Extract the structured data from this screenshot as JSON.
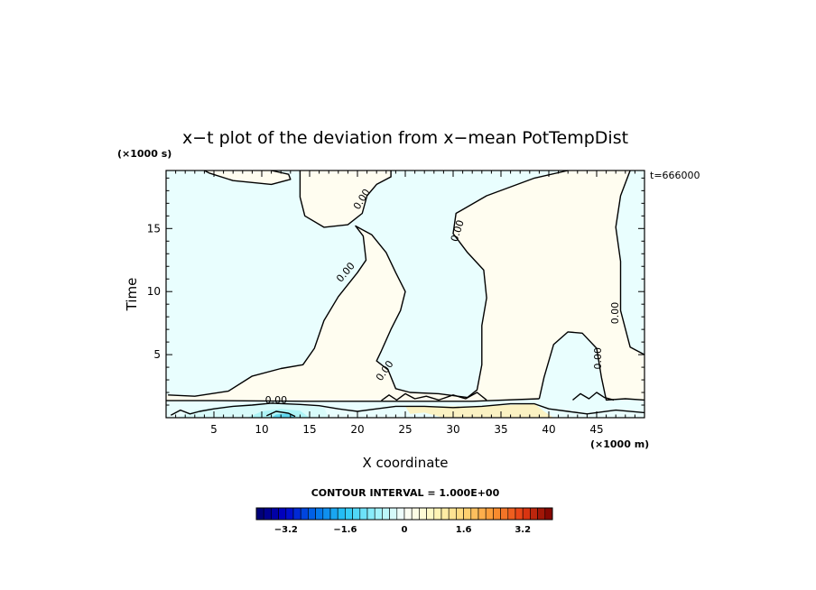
{
  "chart_data": {
    "type": "heatmap",
    "title": "x−t plot of the deviation from x−mean PotTempDist",
    "xlabel": "X coordinate",
    "ylabel": "Time",
    "x_unit_label": "(×1000 m)",
    "y_unit_label": "(×1000 s)",
    "time_annotation": "t=666000",
    "xlim": [
      0,
      50
    ],
    "ylim": [
      0,
      19.6
    ],
    "x_ticks": [
      5,
      10,
      15,
      20,
      25,
      30,
      35,
      40,
      45
    ],
    "x_tick_labels": [
      "5",
      "10",
      "15",
      "20",
      "25",
      "30",
      "35",
      "40",
      "45"
    ],
    "y_ticks": [
      5,
      10,
      15
    ],
    "y_tick_labels": [
      "5",
      "10",
      "15"
    ],
    "contour_label": "0.00",
    "contour_interval_text": "CONTOUR INTERVAL = 1.000E+00",
    "colorbar": {
      "range": [
        -4,
        4
      ],
      "step": 0.2,
      "tick_values": [
        -3.2,
        -1.6,
        0,
        1.6,
        3.2
      ],
      "tick_labels": [
        "−3.2",
        "−1.6",
        "0",
        "1.6",
        "3.2"
      ]
    },
    "regions": [
      {
        "sign": "positive",
        "fill": "#fffdf0",
        "points": [
          [
            4,
            19.6
          ],
          [
            11,
            19.6
          ],
          [
            12.8,
            19.3
          ],
          [
            13,
            18.9
          ],
          [
            11,
            18.5
          ],
          [
            7,
            18.8
          ],
          [
            4.5,
            19.4
          ]
        ]
      },
      {
        "sign": "positive",
        "fill": "#fffdf0",
        "points": [
          [
            14,
            17.5
          ],
          [
            14.5,
            16
          ],
          [
            16.5,
            15.1
          ],
          [
            19,
            15.3
          ],
          [
            20.5,
            16.2
          ],
          [
            21,
            17.6
          ],
          [
            22,
            18.5
          ],
          [
            23.5,
            19.1
          ],
          [
            23.5,
            19.6
          ],
          [
            14,
            19.6
          ]
        ]
      },
      {
        "sign": "positive",
        "fill": "#fffdf0",
        "points": [
          [
            0.2,
            1.8
          ],
          [
            3,
            1.7
          ],
          [
            6.5,
            2.1
          ],
          [
            9,
            3.3
          ],
          [
            12,
            3.9
          ],
          [
            14.3,
            4.2
          ],
          [
            15.5,
            5.5
          ],
          [
            16.5,
            7.7
          ],
          [
            18,
            9.6
          ],
          [
            20,
            11.5
          ],
          [
            20.9,
            12.5
          ],
          [
            20.6,
            14.4
          ],
          [
            19.8,
            15.2
          ],
          [
            21.5,
            14.5
          ],
          [
            23,
            13.1
          ],
          [
            24,
            11.5
          ],
          [
            25,
            10
          ],
          [
            24.5,
            8.5
          ],
          [
            23.5,
            7
          ],
          [
            22.5,
            5.3
          ],
          [
            22,
            4.5
          ],
          [
            23.2,
            3.8
          ],
          [
            24,
            2.3
          ],
          [
            25.5,
            2
          ],
          [
            28.5,
            1.9
          ],
          [
            31.5,
            1.6
          ],
          [
            32.5,
            2.2
          ],
          [
            33,
            4.2
          ],
          [
            33,
            7.3
          ],
          [
            33.5,
            9.5
          ],
          [
            33.2,
            11.7
          ],
          [
            31.5,
            13.1
          ],
          [
            30,
            14.6
          ],
          [
            30.3,
            16.2
          ],
          [
            33.5,
            17.6
          ],
          [
            38.5,
            19
          ],
          [
            42,
            19.6
          ],
          [
            48.5,
            19.6
          ],
          [
            47.5,
            17.6
          ],
          [
            47,
            15.1
          ],
          [
            47.5,
            12.4
          ],
          [
            47.5,
            8.5
          ],
          [
            48.5,
            5.6
          ],
          [
            50,
            5
          ],
          [
            50,
            1.4
          ],
          [
            48,
            1.5
          ],
          [
            46,
            1.4
          ],
          [
            45.5,
            3.2
          ],
          [
            45,
            5.5
          ],
          [
            43.5,
            6.7
          ],
          [
            42,
            6.8
          ],
          [
            40.5,
            5.8
          ],
          [
            39.5,
            3.2
          ],
          [
            39,
            1.5
          ],
          [
            32,
            1.3
          ],
          [
            15,
            1.3
          ],
          [
            5,
            1.35
          ],
          [
            0,
            1.35
          ],
          [
            0,
            1.8
          ]
        ]
      },
      {
        "sign": "positive",
        "fill": "#fbf2c3",
        "points": [
          [
            25,
            0.9
          ],
          [
            33,
            0.9
          ],
          [
            38.5,
            1.1
          ],
          [
            39.5,
            0.5
          ],
          [
            40.5,
            0
          ],
          [
            29,
            0
          ],
          [
            27,
            0.4
          ],
          [
            25.5,
            0.3
          ]
        ]
      },
      {
        "sign": "negative",
        "fill": "#d8fbfa",
        "points": [
          [
            1.2,
            0
          ],
          [
            3,
            0.6
          ],
          [
            6,
            0.9
          ],
          [
            10,
            1.2
          ],
          [
            14,
            1.0
          ],
          [
            16.5,
            0.8
          ],
          [
            17,
            0
          ],
          [
            1.2,
            0
          ]
        ]
      },
      {
        "sign": "negative",
        "fill": "#aef4f6",
        "points": [
          [
            8.5,
            0
          ],
          [
            10,
            0.5
          ],
          [
            12,
            0.7
          ],
          [
            14,
            0.55
          ],
          [
            15,
            0
          ],
          [
            8.5,
            0
          ]
        ]
      },
      {
        "sign": "negative",
        "fill": "#5fd7ee",
        "points": [
          [
            11,
            0
          ],
          [
            11.5,
            0.25
          ],
          [
            12.8,
            0.35
          ],
          [
            13.5,
            0
          ]
        ]
      }
    ],
    "contours": [
      {
        "level": 0,
        "closed": false,
        "points": [
          [
            4,
            19.6
          ],
          [
            4.5,
            19.4
          ],
          [
            7,
            18.8
          ],
          [
            11,
            18.5
          ],
          [
            13,
            18.9
          ],
          [
            12.8,
            19.3
          ],
          [
            11,
            19.6
          ]
        ]
      },
      {
        "level": 0,
        "closed": false,
        "points": [
          [
            14,
            19.6
          ],
          [
            14,
            17.5
          ],
          [
            14.5,
            16
          ],
          [
            16.5,
            15.1
          ],
          [
            19,
            15.3
          ],
          [
            20.5,
            16.2
          ],
          [
            21,
            17.6
          ],
          [
            22,
            18.5
          ],
          [
            23.5,
            19.1
          ],
          [
            23.5,
            19.6
          ]
        ]
      },
      {
        "level": 0,
        "closed": false,
        "points": [
          [
            0.2,
            1.8
          ],
          [
            3,
            1.7
          ],
          [
            6.5,
            2.1
          ],
          [
            9,
            3.3
          ],
          [
            12,
            3.9
          ],
          [
            14.3,
            4.2
          ],
          [
            15.5,
            5.5
          ],
          [
            16.5,
            7.7
          ],
          [
            18,
            9.6
          ],
          [
            20,
            11.5
          ],
          [
            20.9,
            12.5
          ],
          [
            20.6,
            14.4
          ],
          [
            19.8,
            15.2
          ],
          [
            21.5,
            14.5
          ],
          [
            23,
            13.1
          ],
          [
            24,
            11.5
          ],
          [
            25,
            10
          ],
          [
            24.5,
            8.5
          ],
          [
            23.5,
            7
          ],
          [
            22.5,
            5.3
          ],
          [
            22,
            4.5
          ],
          [
            23.2,
            3.8
          ],
          [
            24,
            2.3
          ],
          [
            25.5,
            2
          ],
          [
            28.5,
            1.9
          ],
          [
            31.5,
            1.6
          ],
          [
            32.5,
            2.2
          ],
          [
            33,
            4.2
          ],
          [
            33,
            7.3
          ],
          [
            33.5,
            9.5
          ],
          [
            33.2,
            11.7
          ],
          [
            31.5,
            13.1
          ],
          [
            30,
            14.6
          ],
          [
            30.3,
            16.2
          ],
          [
            33.5,
            17.6
          ],
          [
            38.5,
            19
          ],
          [
            42,
            19.6
          ]
        ]
      },
      {
        "level": 0,
        "closed": false,
        "points": [
          [
            48.5,
            19.6
          ],
          [
            47.5,
            17.6
          ],
          [
            47,
            15.1
          ],
          [
            47.5,
            12.4
          ],
          [
            47.5,
            8.5
          ],
          [
            48.5,
            5.6
          ],
          [
            50,
            5
          ]
        ]
      },
      {
        "level": 0,
        "closed": false,
        "points": [
          [
            39,
            1.5
          ],
          [
            39.5,
            3.2
          ],
          [
            40.5,
            5.8
          ],
          [
            42,
            6.8
          ],
          [
            43.5,
            6.7
          ],
          [
            45,
            5.5
          ],
          [
            45.5,
            3.2
          ],
          [
            46,
            1.4
          ],
          [
            48,
            1.5
          ],
          [
            50,
            1.4
          ]
        ]
      },
      {
        "level": 0,
        "closed": false,
        "points": [
          [
            0,
            1.35
          ],
          [
            5,
            1.35
          ],
          [
            15,
            1.3
          ],
          [
            32,
            1.3
          ],
          [
            39,
            1.5
          ]
        ]
      },
      {
        "level": 0,
        "closed": false,
        "points": [
          [
            0.5,
            0.2
          ],
          [
            1.5,
            0.6
          ],
          [
            2.5,
            0.3
          ],
          [
            3.5,
            0.5
          ],
          [
            5,
            0.7
          ],
          [
            7,
            0.9
          ],
          [
            9,
            1.0
          ],
          [
            11,
            1.15
          ],
          [
            14,
            1.05
          ],
          [
            16,
            0.95
          ],
          [
            18,
            0.7
          ],
          [
            20,
            0.5
          ],
          [
            22,
            0.7
          ],
          [
            24,
            0.9
          ],
          [
            27,
            0.9
          ],
          [
            30,
            0.8
          ],
          [
            33,
            0.9
          ],
          [
            36,
            1.1
          ],
          [
            38.5,
            1.1
          ],
          [
            40,
            0.7
          ],
          [
            42,
            0.5
          ],
          [
            44,
            0.3
          ],
          [
            47,
            0.6
          ],
          [
            50,
            0.4
          ]
        ]
      },
      {
        "level": 0,
        "closed": false,
        "points": [
          [
            22.5,
            1.35
          ],
          [
            23.3,
            1.8
          ],
          [
            24.1,
            1.4
          ],
          [
            25,
            1.9
          ],
          [
            26,
            1.5
          ],
          [
            27.2,
            1.7
          ],
          [
            28.5,
            1.4
          ],
          [
            30,
            1.8
          ],
          [
            31.3,
            1.5
          ],
          [
            32.5,
            2.0
          ],
          [
            33.5,
            1.4
          ]
        ]
      },
      {
        "level": 0,
        "closed": false,
        "points": [
          [
            42.5,
            1.4
          ],
          [
            43.3,
            1.9
          ],
          [
            44.2,
            1.5
          ],
          [
            45,
            2.0
          ],
          [
            45.8,
            1.6
          ],
          [
            46.8,
            1.4
          ]
        ]
      },
      {
        "level": 0,
        "closed": false,
        "points": [
          [
            10.5,
            0.15
          ],
          [
            11.5,
            0.5
          ],
          [
            12.8,
            0.35
          ],
          [
            13.5,
            0.1
          ]
        ]
      }
    ],
    "contour_label_positions": [
      {
        "x": 20.5,
        "y": 17.3,
        "angle": -58
      },
      {
        "x": 30.5,
        "y": 14.8,
        "angle": -72
      },
      {
        "x": 18.8,
        "y": 11.5,
        "angle": -50
      },
      {
        "x": 47,
        "y": 8.3,
        "angle": -90
      },
      {
        "x": 45.2,
        "y": 4.7,
        "angle": -90
      },
      {
        "x": 22.9,
        "y": 3.7,
        "angle": -55
      },
      {
        "x": 11.5,
        "y": 1.35,
        "angle": 0
      }
    ]
  }
}
